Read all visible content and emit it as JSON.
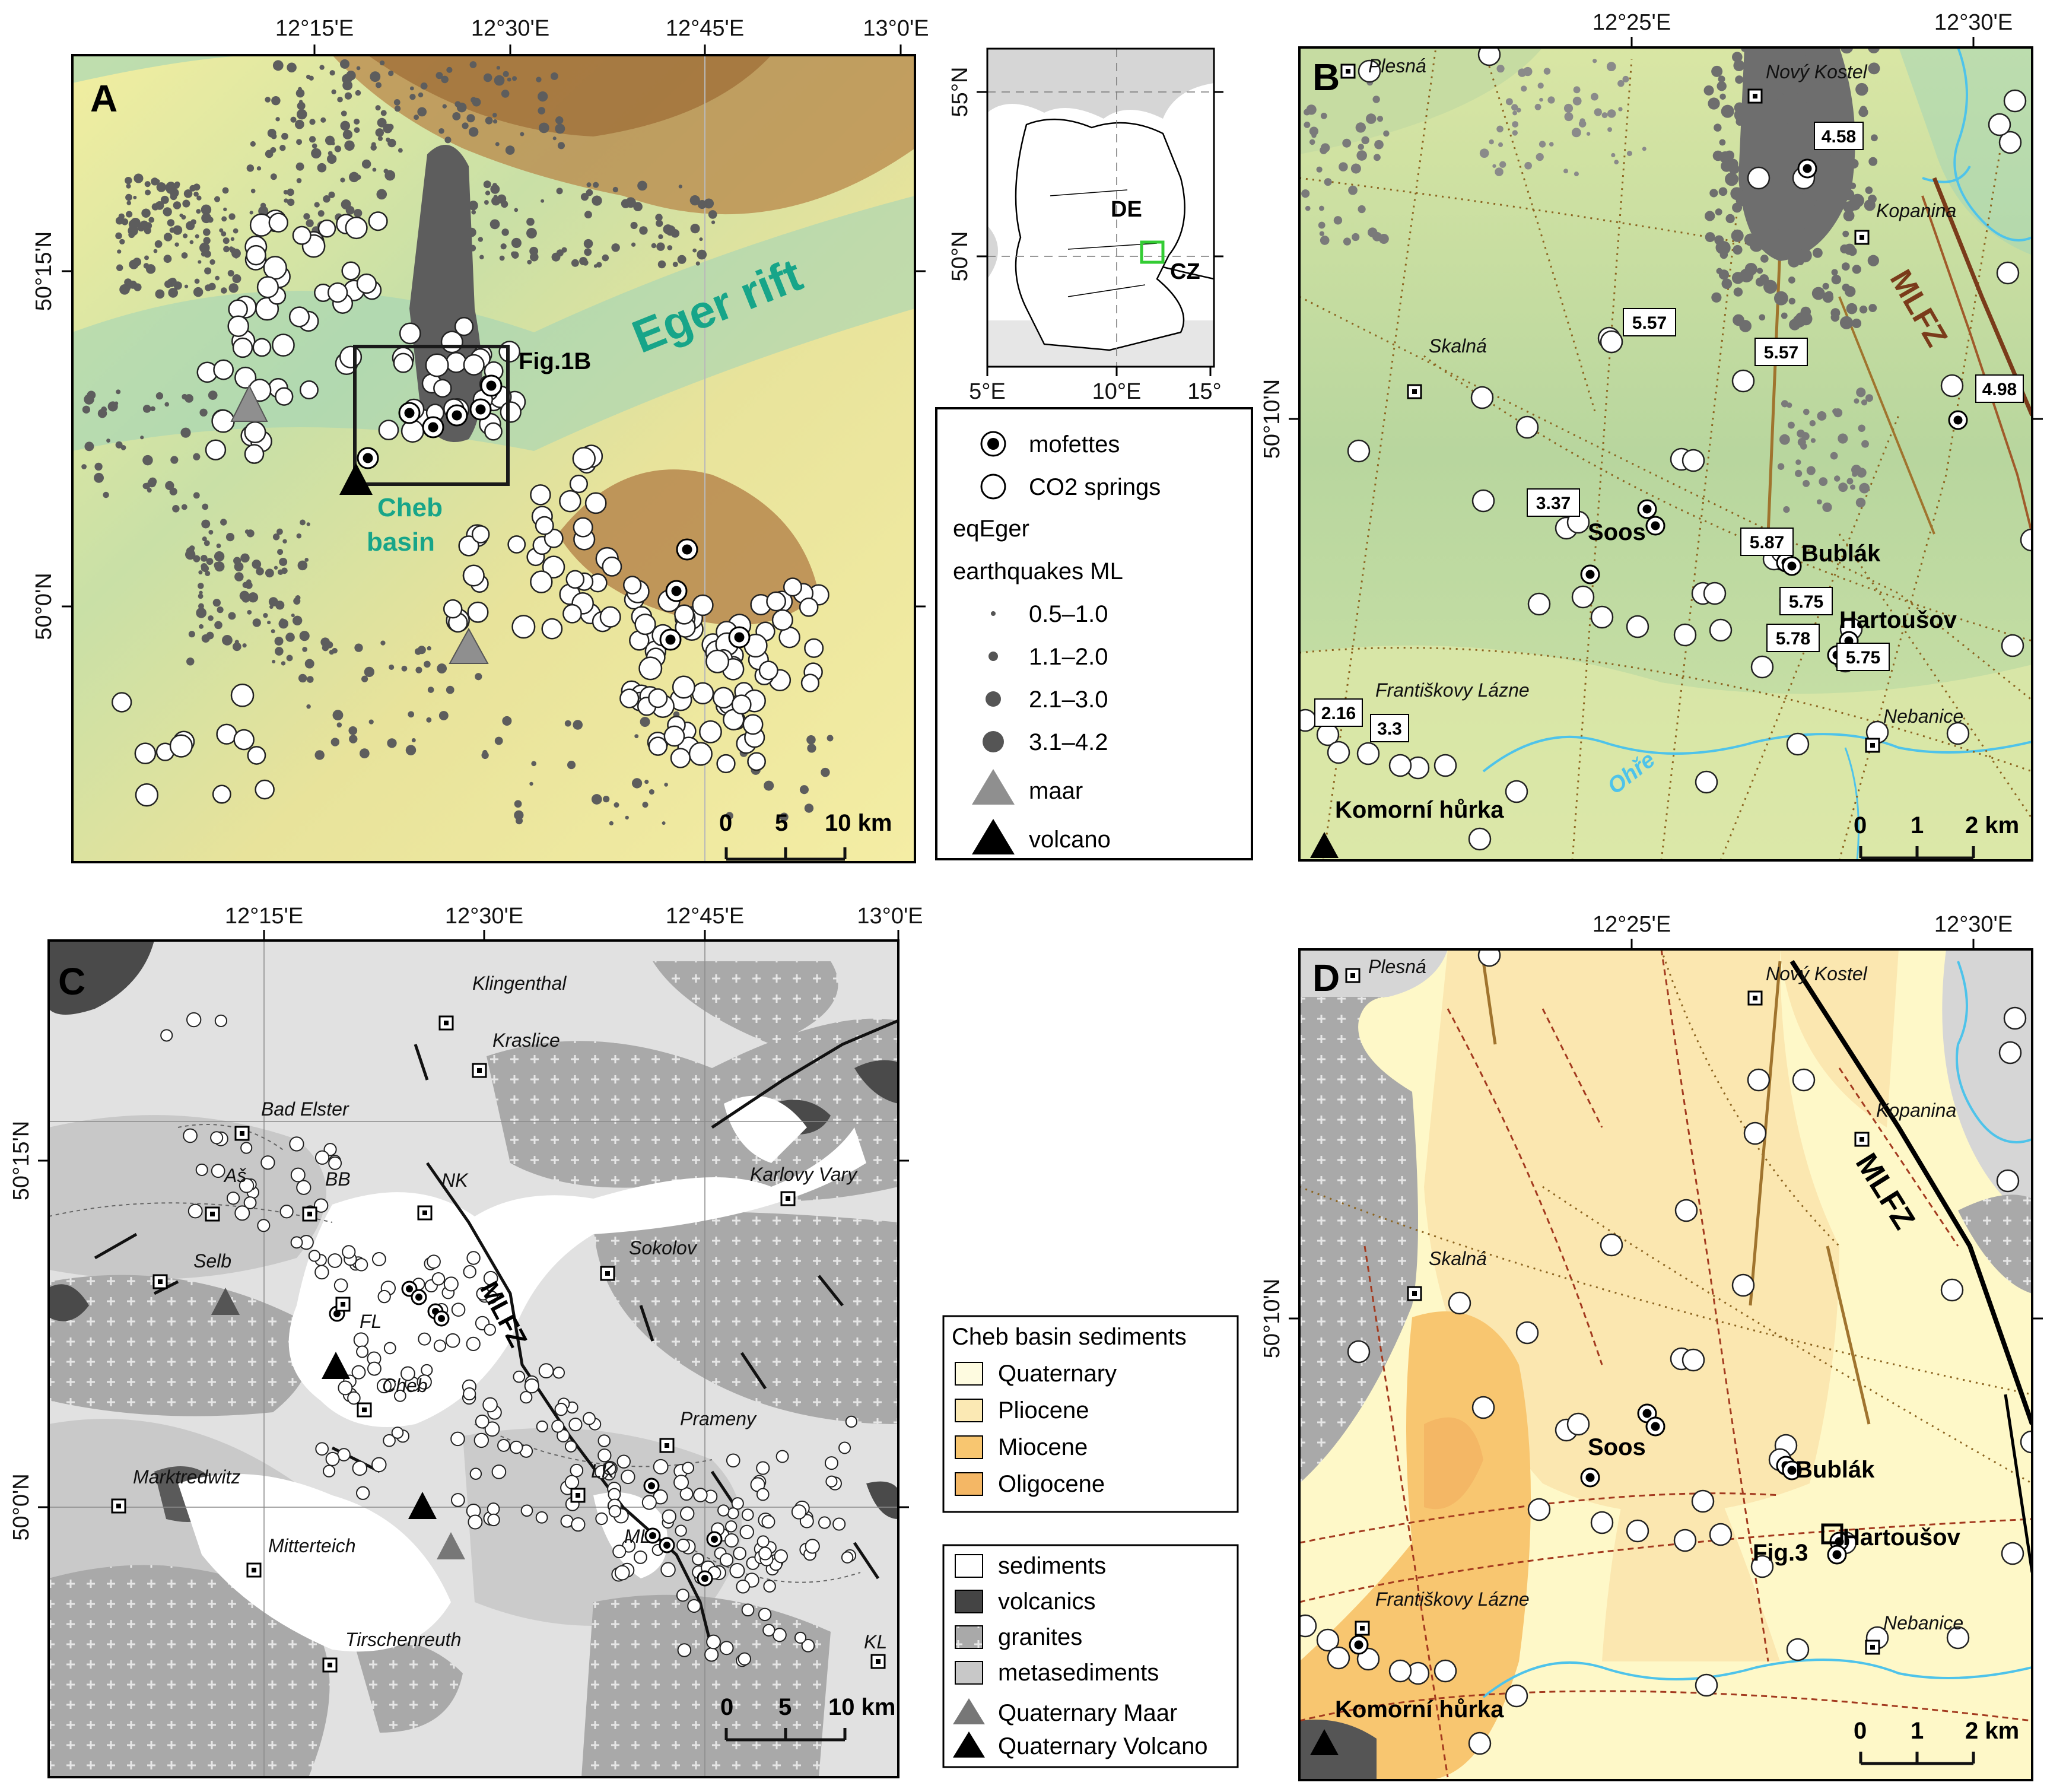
{
  "panel_a": {
    "letter": "A",
    "lon_ticks": [
      "12°15'E",
      "12°30'E",
      "12°45'E",
      "13°0'E"
    ],
    "lat_ticks": [
      "50°15'N",
      "50°0'N"
    ],
    "labels": {
      "rift": "Eger  rift",
      "fig_ref": "Fig.1B",
      "basin_line1": "Cheb",
      "basin_line2": "basin"
    },
    "scale": {
      "t0": "0",
      "t1": "5",
      "t2": "10 km"
    },
    "colors": {
      "rift_text": "#17a589",
      "quakes": "#5d5d5d"
    }
  },
  "inset": {
    "lat_ticks": [
      "55°N",
      "50°N"
    ],
    "lon_ticks": [
      "5°E",
      "10°E",
      "15°"
    ],
    "country_de": "DE",
    "country_cz": "CZ",
    "colors": {
      "study_box": "#33cc33"
    }
  },
  "legend_a": {
    "mofettes": "mofettes",
    "co2": "CO2 springs",
    "eq_title1": "eqEger",
    "eq_title2": "earthquakes ML",
    "mag": [
      "0.5–1.0",
      "1.1–2.0",
      "2.1–3.0",
      "3.1–4.2"
    ],
    "maar": "maar",
    "volcano": "volcano"
  },
  "panel_b": {
    "letter": "B",
    "lon_ticks": [
      "12°25'E",
      "12°30'E"
    ],
    "lat_tick": "50°10'N",
    "places": {
      "plesna": "Plesná",
      "novy": "Nový Kostel",
      "kopanina": "Kopanina",
      "skalna": "Skalná",
      "frant": "Františkovy Lázne",
      "nebanice": "Nebanice"
    },
    "bold": {
      "soos": "Soos",
      "bublak": "Bublák",
      "hartousov": "Hartoušov",
      "komorni": "Komorní hůrka",
      "mlfz": "MLFZ"
    },
    "river": "Ohře",
    "values": {
      "v458": "4.58",
      "v557a": "5.57",
      "v557b": "5.57",
      "v498": "4.98",
      "v337": "3.37",
      "v587": "5.87",
      "v575a": "5.75",
      "v578": "5.78",
      "v575b": "5.75",
      "v216": "2.16",
      "v33": "3.3"
    },
    "scale": {
      "t0": "0",
      "t1": "1",
      "t2": "2 km"
    }
  },
  "panel_c": {
    "letter": "C",
    "lon_ticks": [
      "12°15'E",
      "12°30'E",
      "12°45'E",
      "13°0'E"
    ],
    "lat_ticks": [
      "50°15'N",
      "50°0'N"
    ],
    "places": {
      "klingenthal": "Klingenthal",
      "kraslice": "Kraslice",
      "badelster": "Bad Elster",
      "as": "Aš",
      "bb": "BB",
      "nk": "NK",
      "karlovy": "Karlovy Vary",
      "selb": "Selb",
      "sokolov": "Sokolov",
      "fl": "FL",
      "cheb": "Cheb",
      "prameny": "Prameny",
      "marktredwitz": "Marktredwitz",
      "lk": "LK",
      "mitterteich": "Mitterteich",
      "ml": "ML",
      "tirschenreuth": "Tirschenreuth",
      "kl": "KL"
    },
    "mlfz": "MLFZ",
    "scale": {
      "t0": "0",
      "t1": "5",
      "t2": "10 km"
    }
  },
  "legend_c1": {
    "title": "Cheb basin sediments",
    "items": [
      "Quaternary",
      "Pliocene",
      "Miocene",
      "Oligocene"
    ],
    "colors": [
      "#fefbe0",
      "#fbe9b4",
      "#f8c670",
      "#f4b765"
    ]
  },
  "legend_c2": {
    "items": [
      "sediments",
      "volcanics",
      "granites",
      "metasediments",
      "Quaternary Maar",
      "Quaternary Volcano"
    ]
  },
  "panel_d": {
    "letter": "D",
    "lon_ticks": [
      "12°25'E",
      "12°30'E"
    ],
    "lat_tick": "50°10'N",
    "places": {
      "plesna": "Plesná",
      "novy": "Nový Kostel",
      "kopanina": "Kopanina",
      "skalna": "Skalná",
      "frant": "Františkovy Lázne",
      "nebanice": "Nebanice"
    },
    "bold": {
      "soos": "Soos",
      "bublak": "Bublák",
      "hartousov": "Hartoušov",
      "fig3": "Fig.3",
      "komorni": "Komorní hůrka",
      "mlfz": "MLFZ"
    },
    "scale": {
      "t0": "0",
      "t1": "1",
      "t2": "2 km"
    }
  }
}
